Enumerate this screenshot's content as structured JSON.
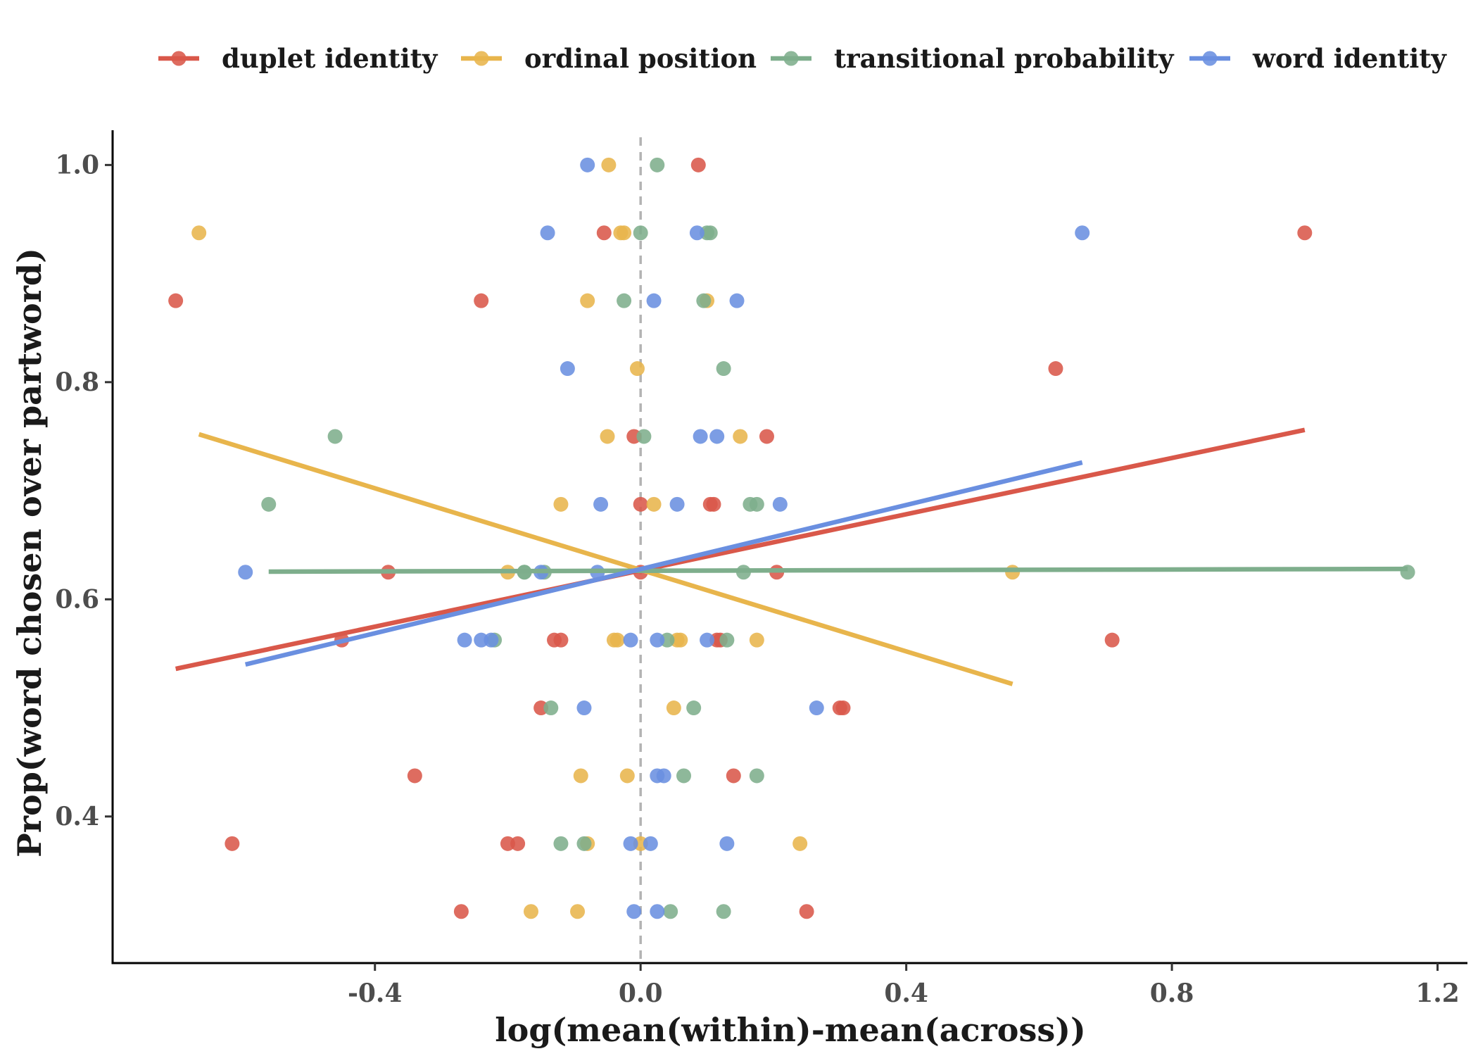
{
  "chart_data": {
    "type": "scatter",
    "xlabel": "log(mean(within)-mean(across))",
    "ylabel": "Prop(word chosen over partword)",
    "xlim": [
      -0.795,
      1.245
    ],
    "ylim": [
      0.265,
      1.032
    ],
    "x_ticks": [
      -0.4,
      0.0,
      0.4,
      0.8,
      1.2
    ],
    "x_tick_labels": [
      "-0.4",
      "0.0",
      "0.4",
      "0.8",
      "1.2"
    ],
    "y_ticks": [
      0.4,
      0.6,
      0.8,
      1.0
    ],
    "y_tick_labels": [
      "0.4",
      "0.6",
      "0.8",
      "1.0"
    ],
    "reference_line_x": 0.0,
    "grid": false,
    "legend_position": "top",
    "series": [
      {
        "name": "duplet identity",
        "color": "#D9584A",
        "points": [
          [
            0.087,
            1.0
          ],
          [
            -0.055,
            0.9375
          ],
          [
            1.0,
            0.9375
          ],
          [
            -0.7,
            0.875
          ],
          [
            -0.24,
            0.875
          ],
          [
            0.625,
            0.8125
          ],
          [
            -0.01,
            0.75
          ],
          [
            0.19,
            0.75
          ],
          [
            0.0,
            0.6875
          ],
          [
            0.105,
            0.6875
          ],
          [
            0.11,
            0.6875
          ],
          [
            -0.38,
            0.625
          ],
          [
            0.205,
            0.625
          ],
          [
            0.0,
            0.625
          ],
          [
            -0.45,
            0.5625
          ],
          [
            -0.13,
            0.5625
          ],
          [
            -0.12,
            0.5625
          ],
          [
            0.115,
            0.5625
          ],
          [
            0.12,
            0.5625
          ],
          [
            0.71,
            0.5625
          ],
          [
            -0.15,
            0.5
          ],
          [
            0.3,
            0.5
          ],
          [
            0.305,
            0.5
          ],
          [
            -0.34,
            0.4375
          ],
          [
            0.14,
            0.4375
          ],
          [
            -0.615,
            0.375
          ],
          [
            -0.2,
            0.375
          ],
          [
            -0.185,
            0.375
          ],
          [
            -0.27,
            0.3125
          ],
          [
            0.25,
            0.3125
          ]
        ],
        "fit": [
          [
            -0.7,
            0.536
          ],
          [
            1.0,
            0.756
          ]
        ]
      },
      {
        "name": "ordinal position",
        "color": "#E8B54C",
        "points": [
          [
            -0.048,
            1.0
          ],
          [
            -0.665,
            0.9375
          ],
          [
            -0.03,
            0.9375
          ],
          [
            -0.025,
            0.9375
          ],
          [
            -0.08,
            0.875
          ],
          [
            0.1,
            0.875
          ],
          [
            -0.005,
            0.8125
          ],
          [
            -0.05,
            0.75
          ],
          [
            0.15,
            0.75
          ],
          [
            -0.12,
            0.6875
          ],
          [
            0.02,
            0.6875
          ],
          [
            -0.2,
            0.625
          ],
          [
            0.56,
            0.625
          ],
          [
            -0.04,
            0.5625
          ],
          [
            -0.035,
            0.5625
          ],
          [
            0.055,
            0.5625
          ],
          [
            0.06,
            0.5625
          ],
          [
            0.175,
            0.5625
          ],
          [
            0.05,
            0.5
          ],
          [
            -0.09,
            0.4375
          ],
          [
            -0.02,
            0.4375
          ],
          [
            -0.08,
            0.375
          ],
          [
            0.0,
            0.375
          ],
          [
            0.24,
            0.375
          ],
          [
            -0.165,
            0.3125
          ],
          [
            -0.095,
            0.3125
          ]
        ],
        "fit": [
          [
            -0.665,
            0.752
          ],
          [
            0.56,
            0.522
          ]
        ]
      },
      {
        "name": "transitional probability",
        "color": "#7EAE8C",
        "points": [
          [
            0.025,
            1.0
          ],
          [
            0.0,
            0.9375
          ],
          [
            0.1,
            0.9375
          ],
          [
            0.105,
            0.9375
          ],
          [
            -0.025,
            0.875
          ],
          [
            0.095,
            0.875
          ],
          [
            0.125,
            0.8125
          ],
          [
            -0.46,
            0.75
          ],
          [
            0.005,
            0.75
          ],
          [
            -0.56,
            0.6875
          ],
          [
            0.165,
            0.6875
          ],
          [
            0.175,
            0.6875
          ],
          [
            -0.175,
            0.625
          ],
          [
            -0.175,
            0.625
          ],
          [
            -0.145,
            0.625
          ],
          [
            0.155,
            0.625
          ],
          [
            1.155,
            0.625
          ],
          [
            -0.22,
            0.5625
          ],
          [
            0.04,
            0.5625
          ],
          [
            0.13,
            0.5625
          ],
          [
            -0.135,
            0.5
          ],
          [
            0.08,
            0.5
          ],
          [
            0.065,
            0.4375
          ],
          [
            0.175,
            0.4375
          ],
          [
            -0.12,
            0.375
          ],
          [
            -0.085,
            0.375
          ],
          [
            0.045,
            0.3125
          ],
          [
            0.125,
            0.3125
          ]
        ],
        "fit": [
          [
            -0.56,
            0.6255
          ],
          [
            1.155,
            0.628
          ]
        ]
      },
      {
        "name": "word identity",
        "color": "#6A8FE0",
        "points": [
          [
            -0.08,
            1.0
          ],
          [
            -0.14,
            0.9375
          ],
          [
            0.085,
            0.9375
          ],
          [
            0.665,
            0.9375
          ],
          [
            0.02,
            0.875
          ],
          [
            0.145,
            0.875
          ],
          [
            -0.11,
            0.8125
          ],
          [
            0.09,
            0.75
          ],
          [
            0.115,
            0.75
          ],
          [
            -0.06,
            0.6875
          ],
          [
            0.055,
            0.6875
          ],
          [
            0.21,
            0.6875
          ],
          [
            -0.595,
            0.625
          ],
          [
            -0.15,
            0.625
          ],
          [
            -0.065,
            0.625
          ],
          [
            -0.265,
            0.5625
          ],
          [
            -0.24,
            0.5625
          ],
          [
            -0.225,
            0.5625
          ],
          [
            -0.015,
            0.5625
          ],
          [
            0.025,
            0.5625
          ],
          [
            0.1,
            0.5625
          ],
          [
            -0.085,
            0.5
          ],
          [
            0.265,
            0.5
          ],
          [
            0.025,
            0.4375
          ],
          [
            0.035,
            0.4375
          ],
          [
            -0.015,
            0.375
          ],
          [
            0.015,
            0.375
          ],
          [
            0.13,
            0.375
          ],
          [
            -0.01,
            0.3125
          ],
          [
            0.025,
            0.3125
          ]
        ],
        "fit": [
          [
            -0.595,
            0.54
          ],
          [
            0.665,
            0.726
          ]
        ]
      }
    ]
  }
}
